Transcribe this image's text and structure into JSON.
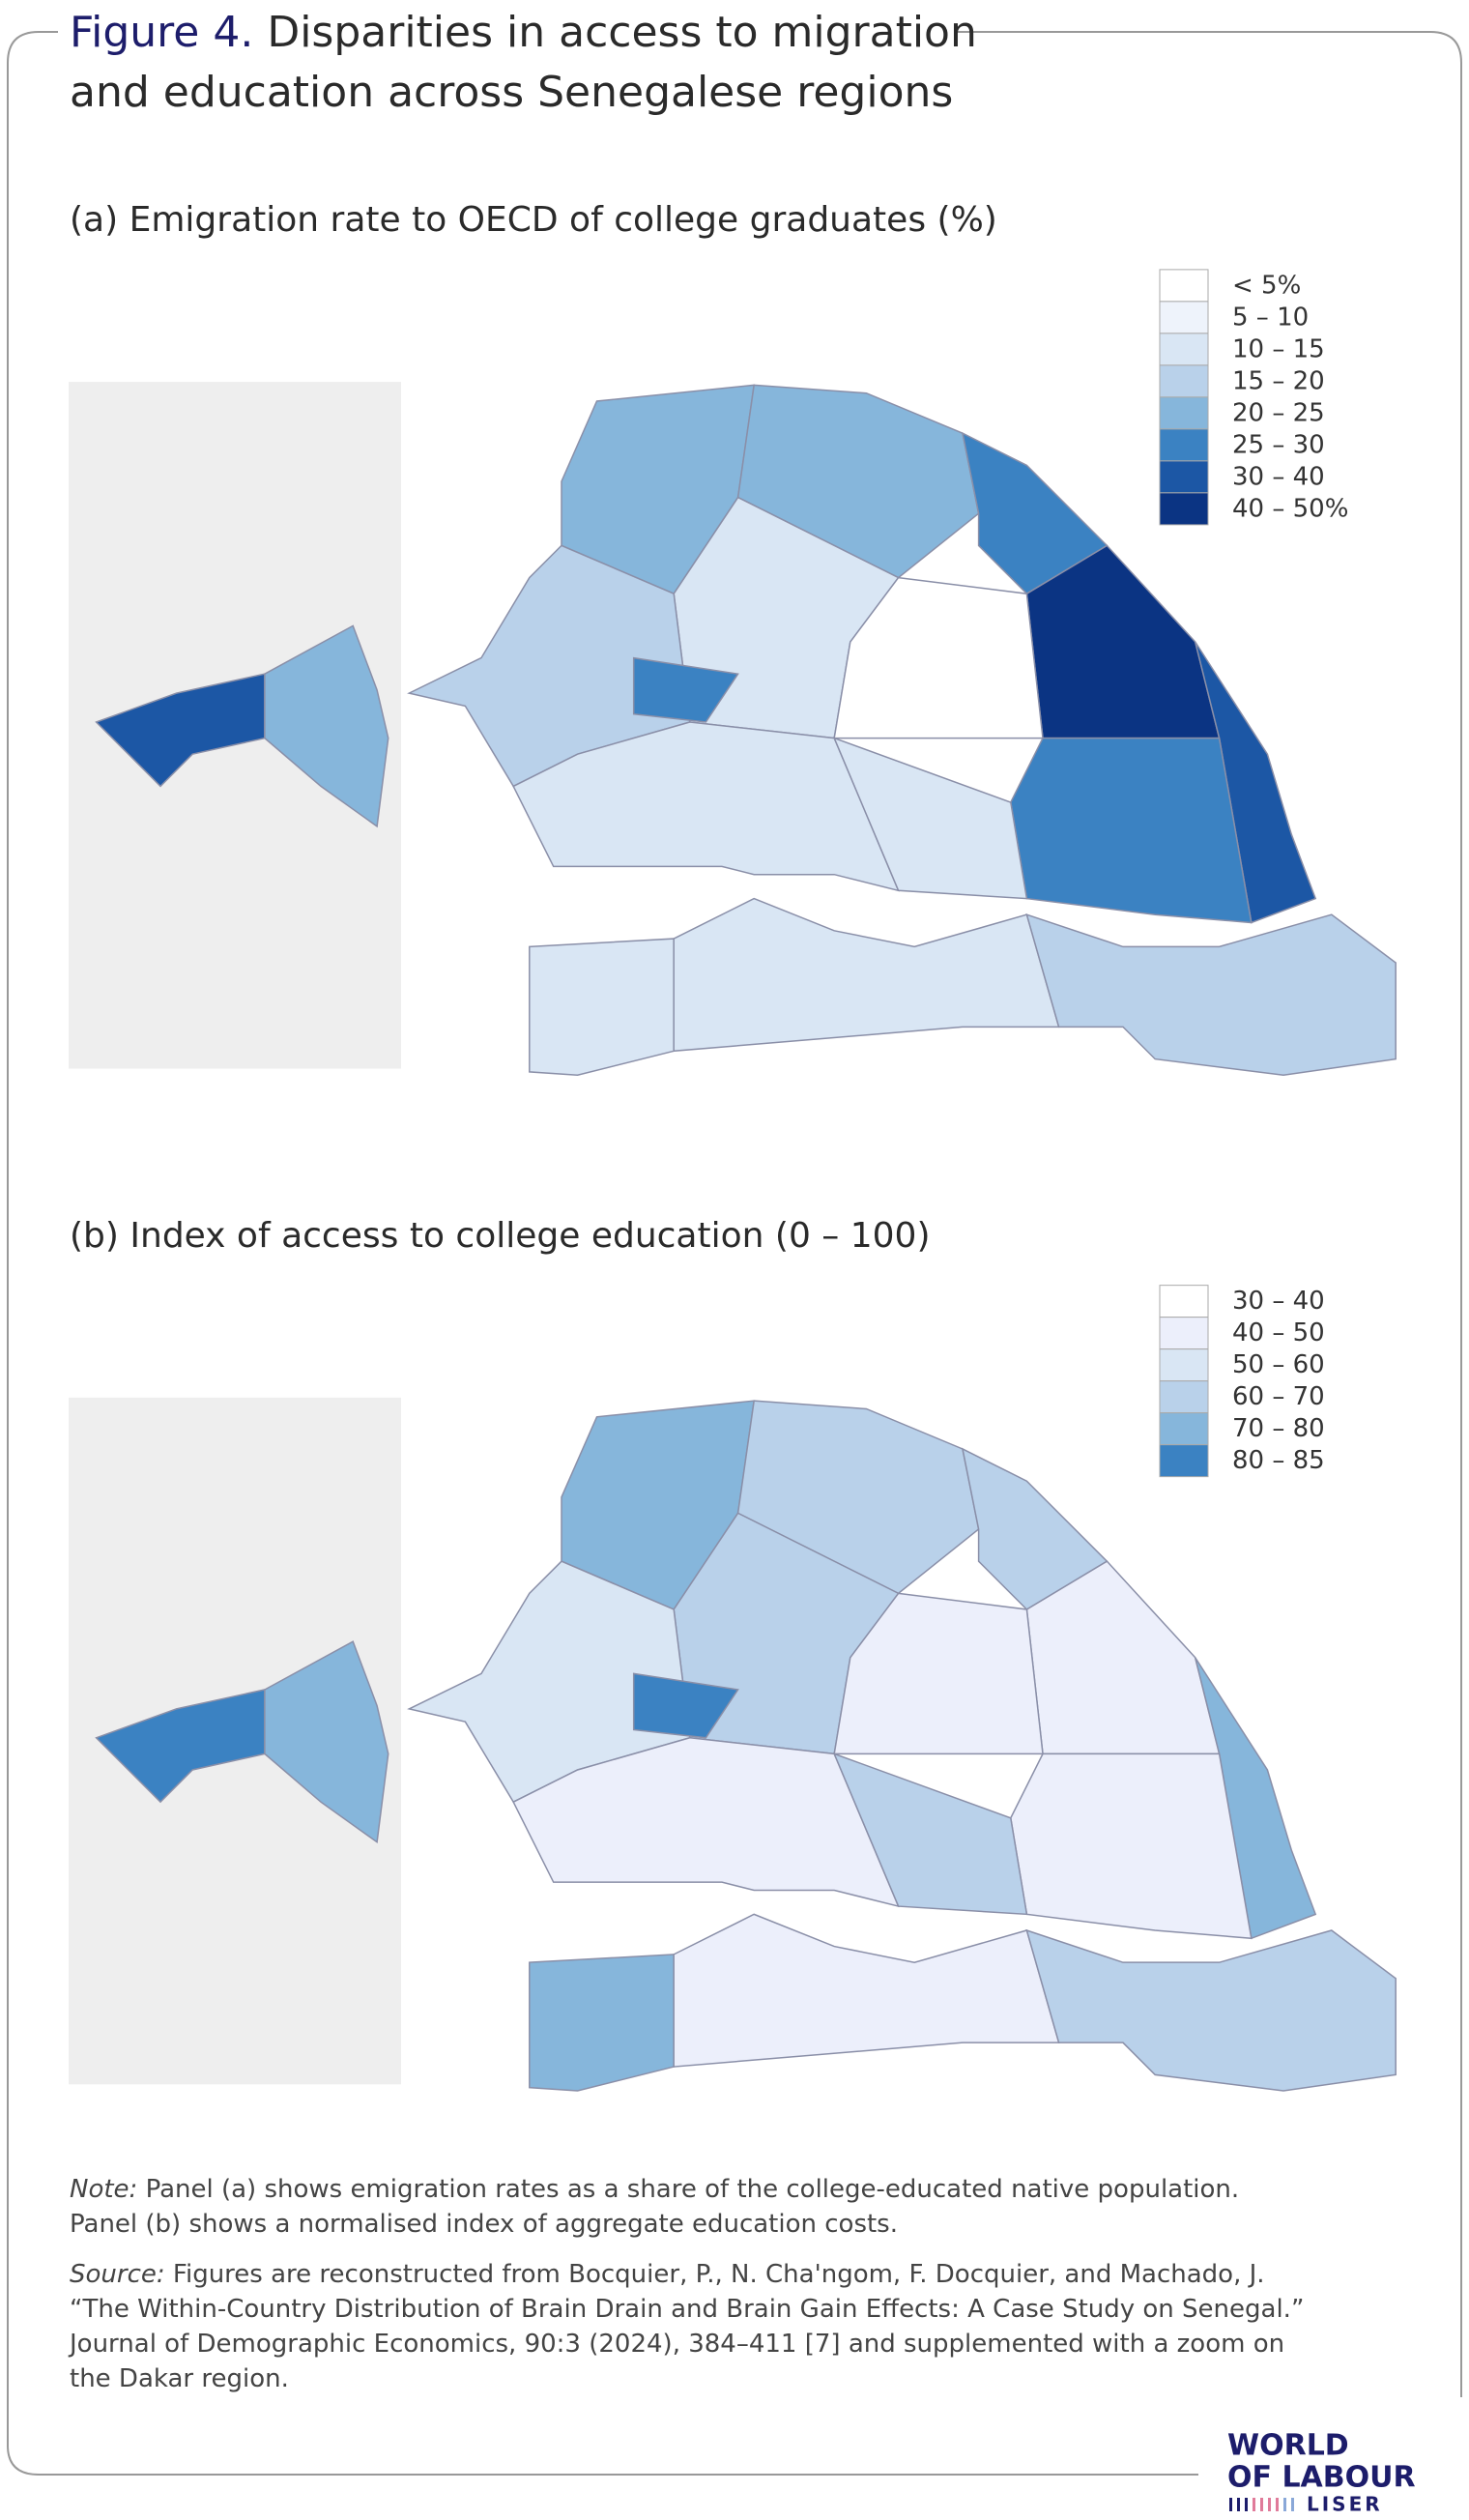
{
  "header": {
    "label": "Figure 4.",
    "title_lines": [
      "Disparities in access to migration",
      "and education across Senegalese regions"
    ]
  },
  "panels": [
    {
      "title": "(a) Emigration rate to OECD of college graduates (%)",
      "legend": [
        {
          "label": "< 5%",
          "color": "#ffffff"
        },
        {
          "label": "5 – 10",
          "color": "#eef3fb"
        },
        {
          "label": "10 – 15",
          "color": "#d9e6f4"
        },
        {
          "label": "15 – 20",
          "color": "#b9d1ea"
        },
        {
          "label": "20 – 25",
          "color": "#86b6db"
        },
        {
          "label": "25 – 30",
          "color": "#3b82c2"
        },
        {
          "label": "30 – 40",
          "color": "#1c57a5"
        },
        {
          "label": "40 – 50%",
          "color": "#0b3483"
        }
      ]
    },
    {
      "title": "(b) Index of access to college education (0 – 100)",
      "legend": [
        {
          "label": "30 – 40",
          "color": "#ffffff"
        },
        {
          "label": "40 – 50",
          "color": "#eceffb"
        },
        {
          "label": "50 – 60",
          "color": "#d9e6f4"
        },
        {
          "label": "60 – 70",
          "color": "#b9d1ea"
        },
        {
          "label": "70 – 80",
          "color": "#86b6db"
        },
        {
          "label": "80 – 85",
          "color": "#3b82c2"
        }
      ]
    }
  ],
  "note": {
    "label": "Note:",
    "lines": [
      "Panel (a) shows emigration rates as a share of the college-educated native population.",
      "Panel (b) shows a normalised index of aggregate education costs."
    ]
  },
  "source": {
    "label": "Source:",
    "lines": [
      "Figures are reconstructed from Bocquier, P., N. Cha'ngom, F. Docquier, and Machado, J.",
      "“The Within-Country Distribution of Brain Drain and Brain Gain Effects: A Case Study on Senegal.”",
      "Journal of Demographic Economics, 90:3 (2024), 384–411 [7] and supplemented with a zoom on",
      "the Dakar region."
    ]
  },
  "logo": {
    "lines": [
      "WORLD",
      "OF LABOUR"
    ],
    "org": "LISER"
  }
}
